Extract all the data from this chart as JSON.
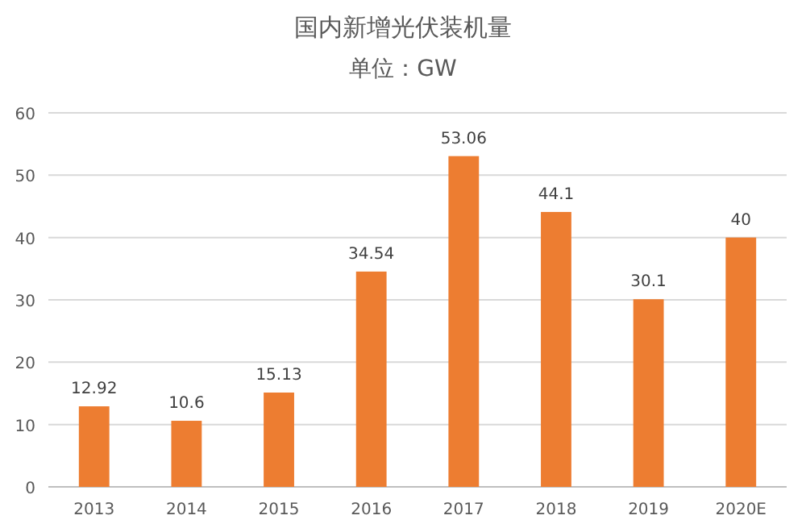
{
  "chart_data": {
    "type": "bar",
    "title": "国内新增光伏装机量",
    "subtitle": "单位：GW",
    "categories": [
      "2013",
      "2014",
      "2015",
      "2016",
      "2017",
      "2018",
      "2019",
      "2020E"
    ],
    "values": [
      12.92,
      10.6,
      15.13,
      34.54,
      53.06,
      44.1,
      30.1,
      40
    ],
    "color": "#ed7d31",
    "ylim": [
      0,
      60
    ],
    "yticks": [
      0,
      10,
      20,
      30,
      40,
      50,
      60
    ],
    "grid": "y",
    "data_labels": true
  }
}
